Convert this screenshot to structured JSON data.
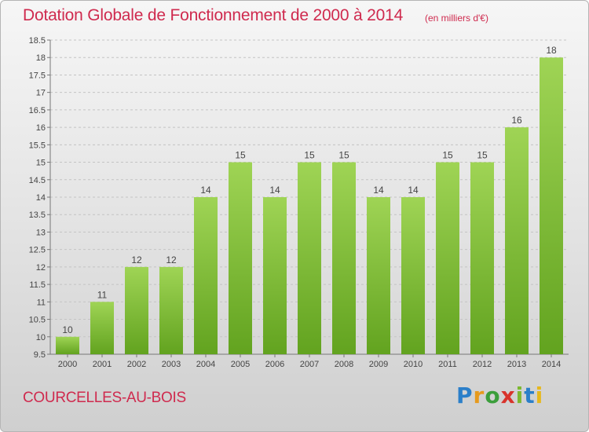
{
  "header": {
    "title": "Dotation Globale de Fonctionnement de 2000 à 2014",
    "subtitle": "(en milliers d'€)"
  },
  "footer": {
    "commune": "COURCELLES-AU-BOIS",
    "brand": [
      "P",
      "r",
      "o",
      "x",
      "i",
      "t",
      "i"
    ]
  },
  "colors": {
    "bar_light": "#9fd455",
    "bar_dark": "#62a31f",
    "title": "#cf2a4e"
  },
  "chart_data": {
    "type": "bar",
    "title": "Dotation Globale de Fonctionnement de 2000 à 2014",
    "subtitle": "(en milliers d'€)",
    "categories": [
      "2000",
      "2001",
      "2002",
      "2003",
      "2004",
      "2005",
      "2006",
      "2007",
      "2008",
      "2009",
      "2010",
      "2011",
      "2012",
      "2013",
      "2014"
    ],
    "values": [
      10,
      11,
      12,
      12,
      14,
      15,
      14,
      15,
      15,
      14,
      14,
      15,
      15,
      16,
      18
    ],
    "labels": [
      "10",
      "11",
      "12",
      "12",
      "14",
      "15",
      "14",
      "15",
      "15",
      "14",
      "14",
      "15",
      "15",
      "16",
      "18"
    ],
    "ylim": [
      9.5,
      18.5
    ],
    "yticks": [
      9.5,
      10,
      10.5,
      11,
      11.5,
      12,
      12.5,
      13,
      13.5,
      14,
      14.5,
      15,
      15.5,
      16,
      16.5,
      17,
      17.5,
      18,
      18.5
    ],
    "ytick_labels": [
      "9.5",
      "10",
      "10.5",
      "11",
      "11.5",
      "12",
      "12.5",
      "13",
      "13.5",
      "14",
      "14.5",
      "15",
      "15.5",
      "16",
      "16.5",
      "17",
      "17.5",
      "18",
      "18.5"
    ],
    "grid": true,
    "legend": "none"
  }
}
